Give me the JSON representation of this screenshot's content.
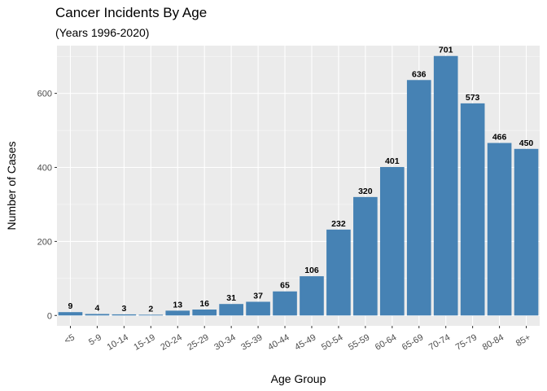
{
  "chart_data": {
    "type": "bar",
    "title": "Cancer Incidents By Age",
    "subtitle": "(Years 1996-2020)",
    "xlabel": "Age Group",
    "ylabel": "Number of Cases",
    "categories": [
      "<5",
      "5-9",
      "10-14",
      "15-19",
      "20-24",
      "25-29",
      "30-34",
      "35-39",
      "40-44",
      "45-49",
      "50-54",
      "55-59",
      "60-64",
      "65-69",
      "70-74",
      "75-79",
      "80-84",
      "85+"
    ],
    "values": [
      9,
      4,
      3,
      2,
      13,
      16,
      31,
      37,
      65,
      106,
      232,
      320,
      401,
      636,
      701,
      573,
      466,
      450
    ],
    "ylim": [
      -28,
      729
    ],
    "yticks": [
      0,
      200,
      400,
      600
    ],
    "grid": true,
    "legend": "none",
    "colors": {
      "bar": "#4682B4",
      "panel": "#EBEBEB",
      "grid_major": "#FFFFFF",
      "axis_text": "#4D4D4D"
    }
  }
}
